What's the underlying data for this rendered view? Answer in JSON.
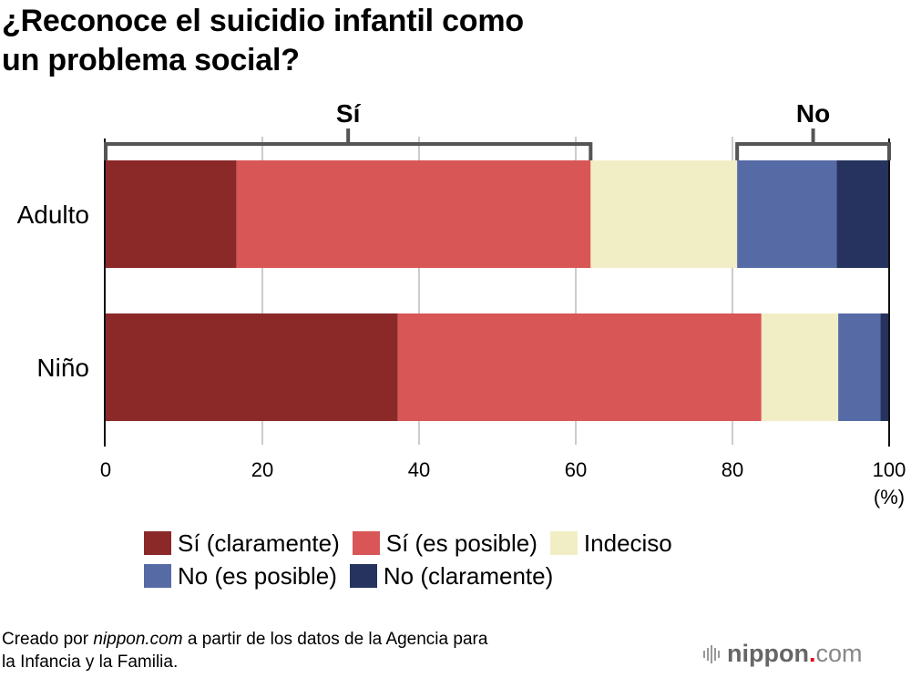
{
  "title_lines": [
    "¿Reconoce el suicidio infantil como",
    "un problema social?"
  ],
  "chart_data": {
    "type": "bar",
    "orientation": "horizontal",
    "stacked": true,
    "title": "¿Reconoce el suicidio infantil como un problema social?",
    "categories": [
      "Adulto",
      "Niño"
    ],
    "series": [
      {
        "name": "Sí (claramente)",
        "color": "#8b2929",
        "values": [
          16.7,
          37.3
        ]
      },
      {
        "name": "Sí (es posible)",
        "color": "#d95656",
        "values": [
          45.2,
          46.4
        ]
      },
      {
        "name": "Indeciso",
        "color": "#f1eec6",
        "values": [
          18.7,
          9.8
        ]
      },
      {
        "name": "No (es posible)",
        "color": "#566ba6",
        "values": [
          12.7,
          5.4
        ]
      },
      {
        "name": "No (claramente)",
        "color": "#26335e",
        "values": [
          6.7,
          1.1
        ]
      }
    ],
    "xlabel": "(%)",
    "ylabel": "",
    "xlim": [
      0,
      100
    ],
    "xticks": [
      0,
      20,
      40,
      60,
      80,
      100
    ],
    "xtick_labels": [
      "0",
      "20",
      "40",
      "60",
      "80",
      "100"
    ],
    "grid": true,
    "group_brackets": [
      {
        "label": "Sí",
        "from": 0,
        "to": 61.9
      },
      {
        "label": "No",
        "from": 80.6,
        "to": 100
      }
    ],
    "legend_position": "bottom"
  },
  "legend_rows": [
    [
      0,
      1,
      2
    ],
    [
      3,
      4
    ]
  ],
  "source": {
    "prefix": "Creado por ",
    "italic": "nippon.com",
    "suffix": " a partir de los datos de la Agencia para",
    "line2": "la Infancia y la Familia."
  },
  "logo": {
    "name": "nippon",
    "dot": ".",
    "tld": "com"
  }
}
